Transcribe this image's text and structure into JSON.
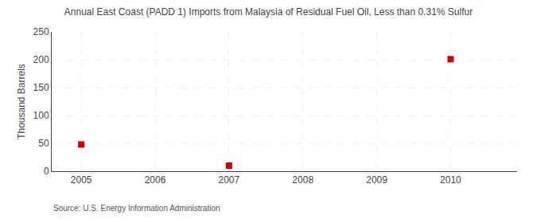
{
  "chart_data": {
    "type": "scatter",
    "title": "Annual East Coast (PADD 1) Imports from Malaysia of Residual Fuel Oil, Less than 0.31% Sulfur",
    "ylabel": "Thousand Barrels",
    "annotations": [
      "Source: U.S. Energy Information Administration"
    ],
    "x": [
      2005,
      2007,
      2010
    ],
    "values": [
      48,
      10,
      201
    ],
    "color": "#cc0000",
    "marker": "square",
    "xlim": [
      2004.6,
      2010.9
    ],
    "ylim": [
      0,
      250
    ],
    "xticks": [
      2005,
      2006,
      2007,
      2008,
      2009,
      2010
    ],
    "yticks": [
      0,
      50,
      100,
      150,
      200,
      250
    ],
    "grid": true
  }
}
